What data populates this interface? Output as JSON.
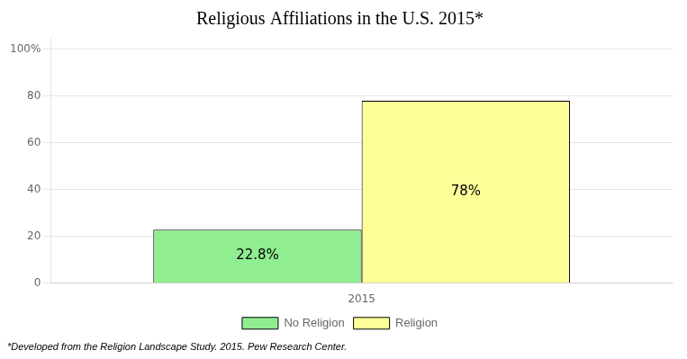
{
  "chart_data": {
    "type": "bar",
    "title": "Religious Affiliations in the U.S. 2015*",
    "categories": [
      "2015"
    ],
    "series": [
      {
        "name": "No Religion",
        "color": "#90EE90",
        "values": [
          22.8
        ],
        "value_labels": [
          "22.8%"
        ]
      },
      {
        "name": "Religion",
        "color": "#FFFF99",
        "values": [
          78.0
        ],
        "value_labels": [
          "78%"
        ]
      }
    ],
    "ylim": [
      0,
      105
    ],
    "yticks": [
      0,
      20,
      40,
      60,
      80,
      {
        "value": 100,
        "label": "100%"
      }
    ],
    "grid": true,
    "legend": "bottom",
    "data_labels": true,
    "footnote": "*Developed from the Religion Landscape Study. 2015. Pew Research Center."
  }
}
